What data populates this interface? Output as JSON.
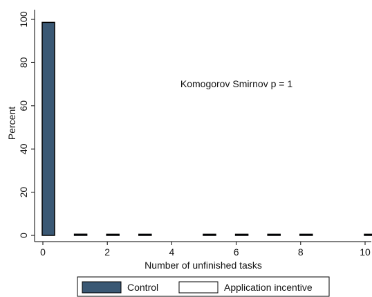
{
  "chart_data": {
    "type": "bar",
    "title": "",
    "annotation": "Komogorov Smirnov p = 1",
    "xlabel": "Number of unfinished tasks",
    "ylabel": "Percent",
    "xlim": [
      -0.2,
      10.2
    ],
    "ylim": [
      0,
      100
    ],
    "xticks": [
      "0",
      "2",
      "4",
      "6",
      "8",
      "10"
    ],
    "yticks": [
      "0",
      "20",
      "40",
      "60",
      "80",
      "100"
    ],
    "grid": false,
    "legend_position": "bottom",
    "colors": {
      "control": "#3a5874",
      "application_incentive": "#ffffff",
      "outline": "#000000"
    },
    "series": [
      {
        "name": "Control",
        "x": [
          0,
          1,
          2,
          3,
          5,
          6,
          7,
          8,
          10
        ],
        "values": [
          98.6,
          0.55,
          0.1,
          0.1,
          0.25,
          0.1,
          0.1,
          0.3,
          0.1
        ]
      },
      {
        "name": "Application incentive",
        "x": [
          0,
          1,
          2,
          3,
          5,
          6,
          7,
          8,
          10
        ],
        "values": [
          98.6,
          0.55,
          0.1,
          0.1,
          0.25,
          0.1,
          0.1,
          0.3,
          0.1
        ]
      }
    ]
  }
}
